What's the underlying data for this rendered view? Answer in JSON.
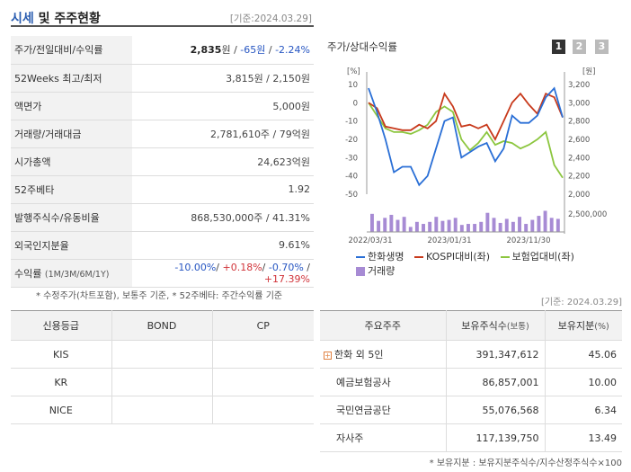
{
  "header": {
    "title_blue": "시세",
    "title_rest": " 및 주주현황",
    "date": "[기준:2024.03.29]"
  },
  "price_table": [
    {
      "label": "주가/전일대비/수익률",
      "value_bold": "2,835",
      "value_unit": "원 / ",
      "value_change": "-65원",
      "value_sep": " / ",
      "value_rate": "-2.24%"
    },
    {
      "label": "52Weeks 최고/최저",
      "value": "3,815원 / 2,150원"
    },
    {
      "label": "액면가",
      "value": "5,000원"
    },
    {
      "label": "거래량/거래대금",
      "value": "2,781,610주 / 79억원"
    },
    {
      "label": "시가총액",
      "value": "24,623억원"
    },
    {
      "label": "52주베타",
      "value": "1.92"
    },
    {
      "label": "발행주식수/유동비율",
      "value": "868,530,000주 / 41.31%"
    },
    {
      "label": "외국인지분율",
      "value": "9.61%"
    }
  ],
  "returns": {
    "label": "수익률",
    "label_sub": "(1M/3M/6M/1Y)",
    "r1": "-10.00%",
    "r2": "+0.18%",
    "r3": "-0.70%",
    "r4": "+17.39%"
  },
  "note1": "* 수정주가(차트포함), 보통주 기준, * 52주베타: 주간수익률 기준",
  "chart": {
    "title": "주가/상대수익률",
    "pages": [
      "1",
      "2",
      "3"
    ],
    "left_unit": "[%]",
    "right_unit": "[원]",
    "y_left_ticks": [
      "10",
      "0",
      "-10",
      "-20",
      "-30",
      "-40",
      "-50"
    ],
    "y_right_ticks": [
      "3,200",
      "3,000",
      "2,800",
      "2,600",
      "2,400",
      "2,200",
      "2,000"
    ],
    "vol_tick": "2,500,000",
    "x_ticks": [
      "2022/03/31",
      "2023/01/31",
      "2023/11/30"
    ],
    "colors": {
      "stock": "#2a6fd6",
      "kospi": "#c83a1c",
      "insurance": "#8cc63f",
      "volume": "#a78bd4"
    },
    "legend": [
      "한화생명",
      "KOSPI대비(좌)",
      "보험업대비(좌)",
      "거래량"
    ]
  },
  "chart_data": {
    "type": "line",
    "ylim_left": [
      -50,
      10
    ],
    "ylim_right": [
      2000,
      3200
    ],
    "series": [
      {
        "name": "한화생명",
        "values": [
          8,
          -5,
          -20,
          -38,
          -35,
          -35,
          -45,
          -40,
          -25,
          -10,
          -8,
          -30,
          -27,
          -24,
          -22,
          -32,
          -25,
          -7,
          -11,
          -11,
          -7,
          3,
          8,
          -8
        ]
      },
      {
        "name": "KOSPI대비(좌)",
        "values": [
          0,
          -3,
          -13,
          -14,
          -15,
          -15,
          -12,
          -14,
          -10,
          5,
          -2,
          -13,
          -12,
          -14,
          -12,
          -20,
          -10,
          0,
          5,
          -1,
          -6,
          5,
          3,
          -8
        ]
      },
      {
        "name": "보험업대비(좌)",
        "values": [
          0,
          -7,
          -14,
          -16,
          -16,
          -17,
          -15,
          -12,
          -5,
          -2,
          -5,
          -20,
          -26,
          -22,
          -16,
          -23,
          -21,
          -22,
          -25,
          -23,
          -20,
          -16,
          -34,
          -41
        ]
      }
    ],
    "volume": [
      1.8,
      1.1,
      1.4,
      1.7,
      1.2,
      1.5,
      0.5,
      1.0,
      0.8,
      1.0,
      1.5,
      1.1,
      1.2,
      1.4,
      0.7,
      0.8,
      0.8,
      1.0,
      1.9,
      1.4,
      0.9,
      1.3,
      1.0,
      1.5,
      0.8,
      1.2,
      1.6,
      2.1,
      1.4,
      1.3
    ],
    "volume_unit": "millions",
    "x_labels": [
      "2022/03/31",
      "2023/01/31",
      "2023/11/30"
    ]
  },
  "date_right": "[기준: 2024.03.29]",
  "credit": {
    "headers": [
      "신용등급",
      "BOND",
      "CP"
    ],
    "rows": [
      {
        "agency": "KIS",
        "bond": "",
        "cp": ""
      },
      {
        "agency": "KR",
        "bond": "",
        "cp": ""
      },
      {
        "agency": "NICE",
        "bond": "",
        "cp": ""
      }
    ]
  },
  "holders": {
    "h1": "주요주주",
    "h2": "보유주식수",
    "h2_sub": "(보통)",
    "h3": "보유지분",
    "h3_sub": "(%)",
    "rows": [
      {
        "name": "한화 외 5인",
        "shares": "391,347,612",
        "pct": "45.06",
        "expand": "+"
      },
      {
        "name": "예금보험공사",
        "shares": "86,857,001",
        "pct": "10.00"
      },
      {
        "name": "국민연금공단",
        "shares": "55,076,568",
        "pct": "6.34"
      },
      {
        "name": "자사주",
        "shares": "117,139,750",
        "pct": "13.49"
      }
    ]
  },
  "note2": "* 보유지분 : 보유지분주식수/지수산정주식수×100"
}
